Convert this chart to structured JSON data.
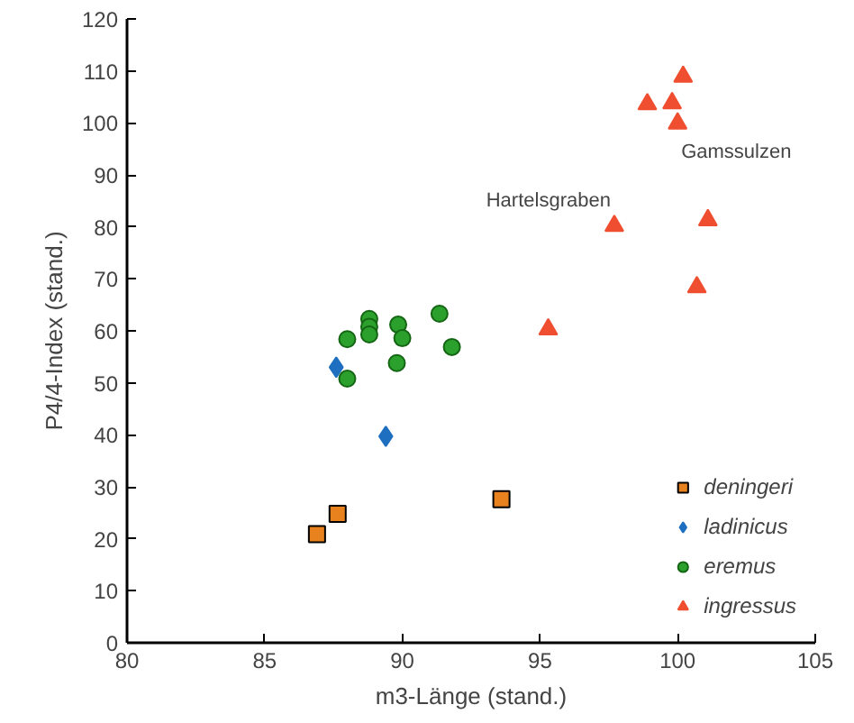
{
  "chart_data": {
    "type": "scatter",
    "xlabel": "m3-Länge (stand.)",
    "ylabel": "P4/4-Index (stand.)",
    "xlim": [
      80,
      105
    ],
    "xticks": [
      80,
      85,
      90,
      95,
      100,
      105
    ],
    "ylim": [
      0,
      120
    ],
    "yticks": [
      0,
      10,
      20,
      30,
      40,
      50,
      60,
      70,
      80,
      90,
      100,
      110,
      120
    ],
    "grid": false,
    "legend": "bottom right",
    "series": [
      {
        "name": "deningeri",
        "color": "#e8821e",
        "marker": "square",
        "x": [
          86.9,
          87.65,
          93.6
        ],
        "values": [
          20.9,
          24.8,
          27.6
        ]
      },
      {
        "name": "ladinicus",
        "color": "#1f6fc0",
        "marker": "diamond",
        "x": [
          87.6,
          89.4
        ],
        "values": [
          53,
          39.7
        ]
      },
      {
        "name": "eremus",
        "color": "#2ca02c",
        "marker": "circle",
        "x": [
          88.0,
          88.0,
          88.8,
          88.8,
          88.8,
          89.85,
          90.0,
          89.8,
          91.35,
          91.8
        ],
        "values": [
          58.4,
          50.8,
          62.3,
          60.8,
          59.3,
          61.2,
          58.6,
          53.8,
          63.3,
          56.9
        ]
      },
      {
        "name": "ingressus",
        "color": "#f04e30",
        "marker": "triangle",
        "x": [
          100.2,
          98.9,
          99.8,
          100.0,
          101.1,
          100.7,
          95.3,
          97.7
        ],
        "values": [
          108.9,
          103.6,
          103.8,
          99.9,
          81.3,
          68.4,
          60.3,
          80.2
        ]
      }
    ],
    "annotations": [
      {
        "text": "Hartelsgraben",
        "x": 97.7,
        "y": 80.2
      },
      {
        "text": "Gamssulzen",
        "x": 100.0,
        "y": 99.9
      }
    ]
  }
}
